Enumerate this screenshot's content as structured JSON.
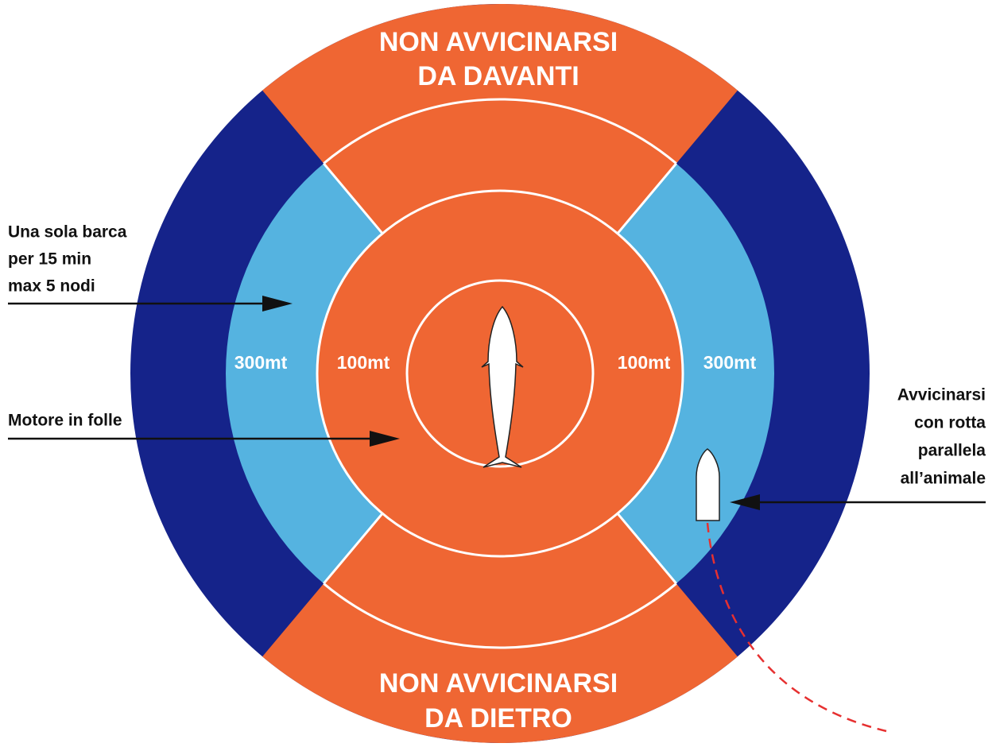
{
  "zones": {
    "front": {
      "lines": [
        "NON AVVICINARSI",
        "DA DAVANTI"
      ]
    },
    "back": {
      "lines": [
        "NON AVVICINARSI",
        "DA DIETRO"
      ]
    }
  },
  "distances": {
    "left_outer": "300mt",
    "left_inner": "100mt",
    "right_inner": "100mt",
    "right_outer": "300mt"
  },
  "notes": {
    "one_boat": {
      "lines": [
        "Una sola barca",
        "per 15 min",
        "max 5 nodi"
      ]
    },
    "engine": {
      "lines": [
        "Motore in folle"
      ]
    },
    "approach": {
      "lines": [
        "Avvicinarsi",
        "con rotta",
        "parallela",
        "all’animale"
      ]
    }
  }
}
